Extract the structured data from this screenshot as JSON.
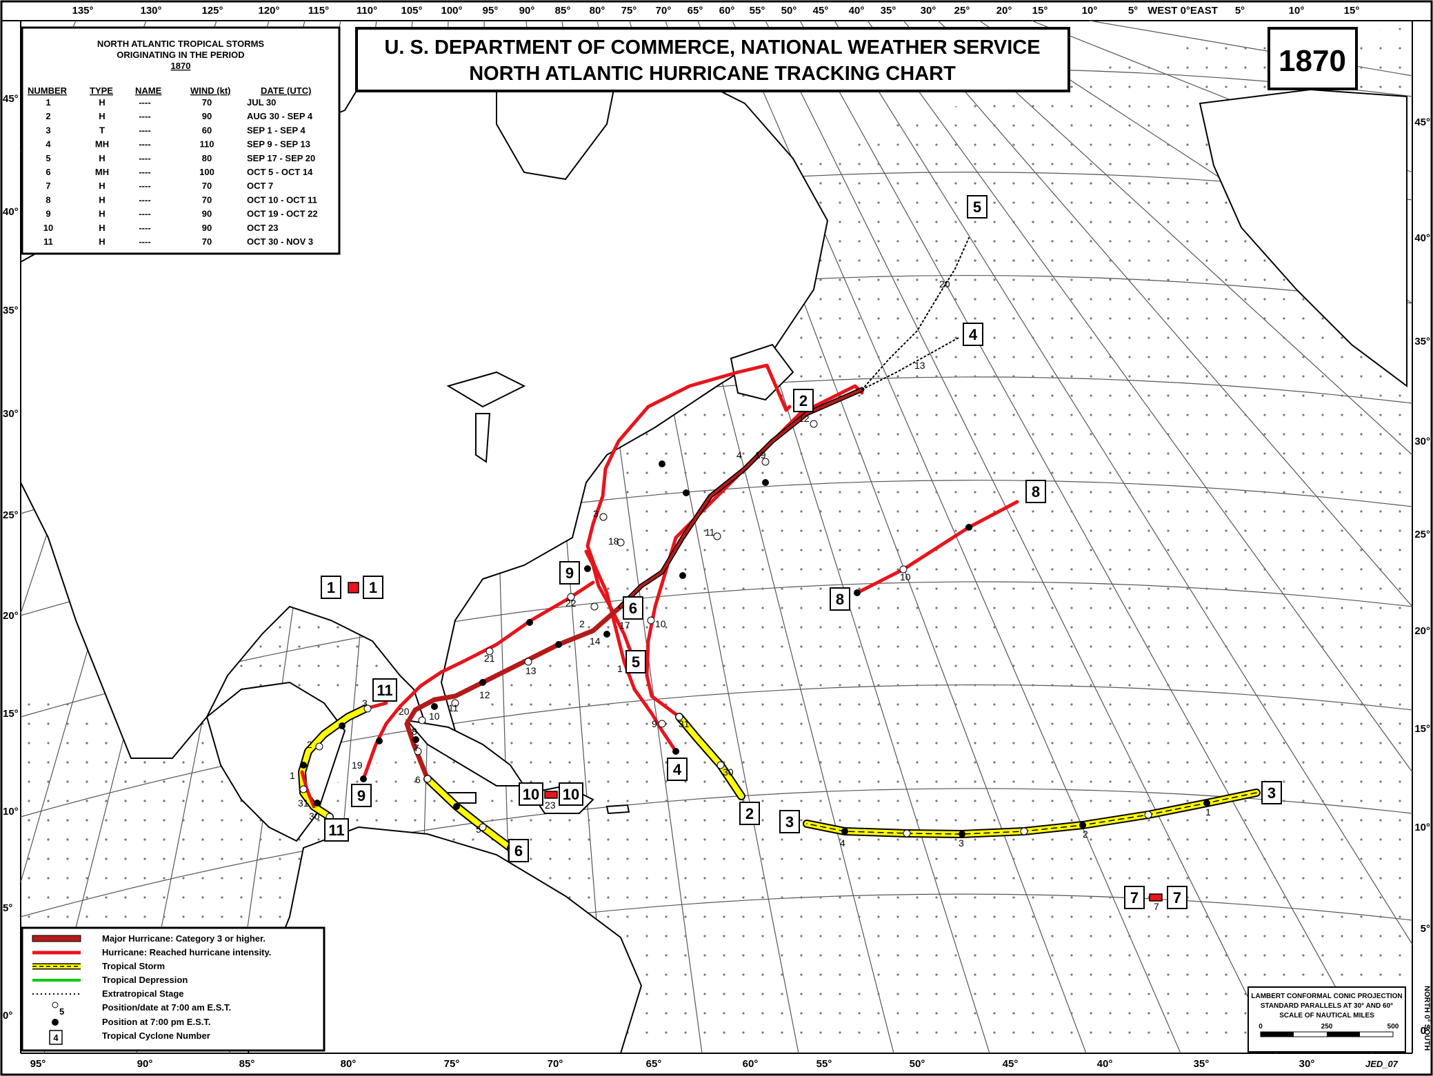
{
  "title": {
    "line1": "U. S. DEPARTMENT OF COMMERCE, NATIONAL WEATHER SERVICE",
    "line2": "NORTH ATLANTIC HURRICANE TRACKING CHART"
  },
  "year": "1870",
  "table": {
    "title_line1": "NORTH ATLANTIC TROPICAL STORMS",
    "title_line2": "ORIGINATING IN THE PERIOD",
    "title_year": "1870",
    "headers": [
      "NUMBER",
      "TYPE",
      "NAME",
      "WIND (kt)",
      "DATE (UTC)"
    ],
    "rows": [
      [
        "1",
        "H",
        "----",
        "70",
        "JUL 30"
      ],
      [
        "2",
        "H",
        "----",
        "90",
        "AUG 30 - SEP  4"
      ],
      [
        "3",
        "T",
        "----",
        "60",
        "SEP  1 - SEP  4"
      ],
      [
        "4",
        "MH",
        "----",
        "110",
        "SEP  9 - SEP 13"
      ],
      [
        "5",
        "H",
        "----",
        "80",
        "SEP 17 - SEP 20"
      ],
      [
        "6",
        "MH",
        "----",
        "100",
        "OCT  5 - OCT 14"
      ],
      [
        "7",
        "H",
        "----",
        "70",
        "OCT  7"
      ],
      [
        "8",
        "H",
        "----",
        "70",
        "OCT 10 - OCT 11"
      ],
      [
        "9",
        "H",
        "----",
        "90",
        "OCT 19 - OCT 22"
      ],
      [
        "10",
        "H",
        "----",
        "90",
        "OCT 23"
      ],
      [
        "11",
        "H",
        "----",
        "70",
        "OCT 30 - NOV  3"
      ]
    ]
  },
  "top_lon_labels": [
    "135°",
    "130°",
    "125°",
    "120°",
    "115°",
    "110°",
    "105°",
    "100°",
    "95°",
    "90°",
    "85°",
    "80°",
    "75°",
    "70°",
    "65°",
    "60°",
    "55°",
    "50°",
    "45°",
    "40°",
    "35°",
    "30°",
    "25°",
    "20°",
    "15°",
    "10°",
    "5°",
    "WEST 0°EAST",
    "5°",
    "10°",
    "15°"
  ],
  "bottom_lon_labels": [
    "95°",
    "90°",
    "85°",
    "80°",
    "75°",
    "70°",
    "65°",
    "60°",
    "55°",
    "50°",
    "45°",
    "40°",
    "35°",
    "30°"
  ],
  "left_lat_labels": [
    "45°",
    "40°",
    "35°",
    "30°",
    "25°",
    "20°",
    "15°",
    "10°",
    "5°",
    "0°"
  ],
  "right_lat_labels": [
    "45°",
    "40°",
    "35°",
    "30°",
    "25°",
    "20°",
    "15°",
    "10°",
    "5°",
    "0°"
  ],
  "legend": {
    "major": "Major Hurricane: Category 3 or higher.",
    "hurricane": "Hurricane: Reached hurricane intensity.",
    "ts": "Tropical Storm",
    "td": "Tropical Depression",
    "ex": "Extratropical Stage",
    "am": "Position/date at 7:00 am E.S.T.",
    "am_sample": "5",
    "pm": "Position at 7:00 pm E.S.T.",
    "num": "Tropical Cyclone Number",
    "num_sample": "4"
  },
  "projection": {
    "line1": "LAMBERT CONFORMAL CONIC PROJECTION",
    "line2": "STANDARD PARALLELS AT 30° AND 60°",
    "line3": "SCALE OF NAUTICAL MILES",
    "scale": [
      "0",
      "250",
      "500"
    ]
  },
  "side_label": "NORTH 0° SOUTH",
  "credit": "JED_07",
  "colors": {
    "major": "#b31b1b",
    "hurricane": "#e8141c",
    "tropical_storm": "#ffff00",
    "tropical_depression": "#00cc00",
    "border": "#000000"
  },
  "storm_boxes": [
    "1",
    "1",
    "2",
    "2",
    "3",
    "3",
    "4",
    "4",
    "5",
    "5",
    "6",
    "6",
    "7",
    "7",
    "8",
    "8",
    "9",
    "9",
    "10",
    "10",
    "11",
    "11"
  ],
  "date_labels": [
    "12",
    "4",
    "19",
    "3",
    "18",
    "22",
    "2",
    "21",
    "14",
    "17",
    "1",
    "10",
    "11",
    "13",
    "12",
    "9",
    "31",
    "30",
    "20",
    "3",
    "10",
    "11",
    "8",
    "7",
    "6",
    "5",
    "2",
    "1",
    "31",
    "30",
    "19",
    "23",
    "7",
    "4",
    "3",
    "2",
    "1",
    "10",
    "20",
    "13"
  ]
}
